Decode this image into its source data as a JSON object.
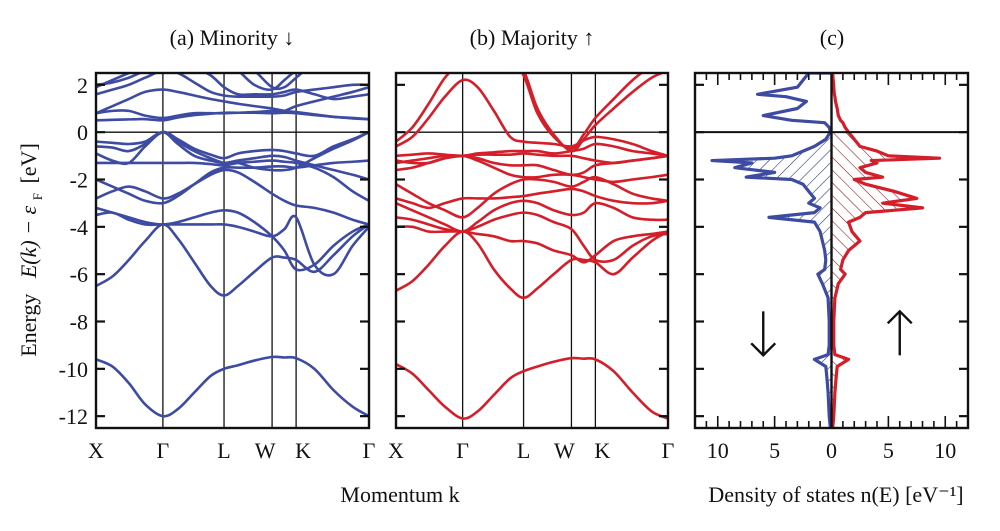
{
  "colors": {
    "minority": "#3d4ba3",
    "majority": "#d41f2a",
    "axis": "#111111"
  },
  "chart_data": [
    {
      "id": "a",
      "type": "line",
      "title": "(a) Minority ↓",
      "xlabel": "",
      "ylabel": "Energy  E(k) − εF [eV]",
      "ylim": [
        -12.5,
        2.5
      ],
      "yticks": [
        2,
        0,
        -2,
        -4,
        -6,
        -8,
        -10,
        -12
      ],
      "ytick_labels": [
        "2",
        "0",
        "-2",
        "-4",
        "-6",
        "-8",
        "-10",
        "-12"
      ],
      "kpoints": [
        {
          "label": "X",
          "pos": 0.0
        },
        {
          "label": "Γ",
          "pos": 0.245
        },
        {
          "label": "L",
          "pos": 0.469
        },
        {
          "label": "W",
          "pos": 0.645
        },
        {
          "label": "K",
          "pos": 0.733
        },
        {
          "label": "Γ",
          "pos": 1.0
        }
      ],
      "fermi_level": 0,
      "series_color": "minority",
      "k_samples": [
        0,
        0.06,
        0.12,
        0.18,
        0.245,
        0.3,
        0.36,
        0.42,
        0.469,
        0.52,
        0.58,
        0.645,
        0.69,
        0.733,
        0.8,
        0.87,
        0.94,
        1.0
      ],
      "bands": [
        [
          -9.6,
          -9.9,
          -10.6,
          -11.5,
          -12.0,
          -11.7,
          -11.0,
          -10.3,
          -10.0,
          -9.85,
          -9.65,
          -9.5,
          -9.52,
          -9.55,
          -10.0,
          -10.9,
          -11.6,
          -12.0
        ],
        [
          -6.5,
          -6.1,
          -5.4,
          -4.6,
          -3.9,
          -4.5,
          -5.5,
          -6.5,
          -6.9,
          -6.5,
          -5.9,
          -5.3,
          -5.3,
          -5.4,
          -5.9,
          -5.2,
          -4.4,
          -3.9
        ],
        [
          -3.5,
          -3.4,
          -3.7,
          -3.9,
          -3.9,
          -3.9,
          -3.9,
          -3.9,
          -3.9,
          -4.0,
          -4.2,
          -4.4,
          -4.1,
          -3.6,
          -5.6,
          -6.0,
          -4.8,
          -4.0
        ],
        [
          -3.2,
          -3.4,
          -3.6,
          -3.8,
          -3.9,
          -3.8,
          -3.6,
          -3.4,
          -3.3,
          -3.4,
          -3.8,
          -4.4,
          -5.0,
          -5.8,
          -5.6,
          -4.8,
          -4.2,
          -3.9
        ],
        [
          -2.8,
          -2.5,
          -2.3,
          -2.5,
          -2.8,
          -2.6,
          -2.2,
          -1.8,
          -1.6,
          -1.7,
          -2.1,
          -2.6,
          -2.9,
          -3.1,
          -3.2,
          -3.4,
          -3.7,
          -3.9
        ],
        [
          -2.0,
          -2.3,
          -2.6,
          -2.9,
          -3.0,
          -2.7,
          -2.2,
          -1.7,
          -1.5,
          -1.5,
          -1.5,
          -1.45,
          -1.45,
          -1.5,
          -1.4,
          -1.3,
          -1.25,
          -1.2
        ],
        [
          -1.3,
          -1.3,
          -1.3,
          -1.3,
          -1.3,
          -1.3,
          -1.3,
          -1.35,
          -1.4,
          -1.3,
          -1.25,
          -1.2,
          -1.25,
          -1.3,
          -1.5,
          -1.9,
          -2.5,
          -2.9
        ],
        [
          -0.4,
          -0.45,
          -0.5,
          -0.4,
          0.0,
          -0.5,
          -1.0,
          -1.2,
          -1.3,
          -1.2,
          -1.1,
          -1.0,
          -1.05,
          -1.2,
          -1.4,
          -1.6,
          -1.8,
          -2.0
        ],
        [
          -0.6,
          -0.65,
          -0.8,
          -0.5,
          0.0,
          -0.3,
          -0.7,
          -0.95,
          -1.1,
          -0.9,
          -0.8,
          -0.75,
          -0.8,
          -0.9,
          -1.0,
          -0.6,
          -0.3,
          0.0
        ],
        [
          -0.9,
          -1.2,
          -1.3,
          -0.6,
          0.0,
          -0.4,
          -0.8,
          -1.1,
          -1.3,
          -1.3,
          -1.5,
          -1.6,
          -1.6,
          -1.5,
          -1.1,
          -0.7,
          -0.35,
          0.0
        ],
        [
          0.5,
          0.52,
          0.54,
          0.55,
          0.5,
          0.62,
          0.72,
          0.78,
          0.82,
          0.82,
          0.82,
          0.8,
          0.82,
          0.8,
          0.72,
          0.65,
          0.58,
          0.55
        ],
        [
          0.8,
          0.9,
          0.9,
          0.7,
          0.6,
          0.7,
          0.8,
          0.8,
          0.8,
          0.82,
          0.85,
          0.9,
          0.9,
          1.1,
          1.3,
          1.5,
          1.7,
          1.9
        ],
        [
          0.8,
          1.1,
          1.4,
          1.7,
          1.8,
          1.7,
          1.55,
          1.4,
          1.3,
          1.2,
          1.1,
          1.0,
          0.9,
          0.85,
          0.75,
          0.65,
          0.6,
          0.55
        ],
        [
          1.6,
          1.8,
          2.0,
          2.3,
          2.6,
          2.5,
          2.1,
          1.7,
          1.55,
          1.5,
          1.5,
          1.5,
          1.55,
          1.7,
          1.8,
          1.9,
          2.0,
          2.0
        ],
        [
          1.9,
          2.2,
          2.5,
          2.8,
          3.0,
          2.9,
          2.7,
          2.4,
          1.9,
          1.6,
          1.6,
          1.6,
          1.7,
          1.8,
          1.6,
          1.4,
          1.5,
          1.6
        ],
        [
          2.0,
          2.1,
          2.3,
          2.6,
          2.9,
          3.0,
          3.0,
          3.0,
          2.9,
          2.6,
          2.0,
          1.8,
          2.2,
          2.6,
          3.0,
          3.0,
          3.0,
          3.0
        ],
        [
          3.0,
          3.0,
          3.0,
          3.0,
          3.0,
          3.0,
          3.0,
          3.0,
          3.0,
          3.0,
          2.6,
          1.9,
          1.9,
          2.3,
          2.9,
          3.0,
          3.0,
          3.0
        ]
      ]
    },
    {
      "id": "b",
      "type": "line",
      "title": "(b) Majority ↑",
      "xlabel": "Momentum  k",
      "ylabel": "",
      "ylim": [
        -12.5,
        2.5
      ],
      "yticks": [
        2,
        0,
        -2,
        -4,
        -6,
        -8,
        -10,
        -12
      ],
      "kpoints": [
        {
          "label": "X",
          "pos": 0.0
        },
        {
          "label": "Γ",
          "pos": 0.245
        },
        {
          "label": "L",
          "pos": 0.469
        },
        {
          "label": "W",
          "pos": 0.645
        },
        {
          "label": "K",
          "pos": 0.733
        },
        {
          "label": "Γ",
          "pos": 1.0
        }
      ],
      "fermi_level": 0,
      "series_color": "majority",
      "k_samples": [
        0,
        0.06,
        0.12,
        0.18,
        0.245,
        0.3,
        0.36,
        0.42,
        0.469,
        0.52,
        0.58,
        0.645,
        0.69,
        0.733,
        0.8,
        0.87,
        0.94,
        1.0
      ],
      "bands": [
        [
          -9.8,
          -10.2,
          -10.9,
          -11.6,
          -12.1,
          -11.8,
          -11.1,
          -10.4,
          -10.1,
          -9.9,
          -9.7,
          -9.55,
          -9.57,
          -9.6,
          -10.1,
          -11.0,
          -11.8,
          -12.1
        ],
        [
          -6.7,
          -6.3,
          -5.6,
          -4.8,
          -4.2,
          -4.7,
          -5.8,
          -6.6,
          -7.0,
          -6.6,
          -6.0,
          -5.4,
          -5.4,
          -5.5,
          -6.0,
          -5.3,
          -4.6,
          -4.2
        ],
        [
          -4.0,
          -4.0,
          -4.2,
          -4.2,
          -4.2,
          -4.3,
          -4.4,
          -4.6,
          -4.6,
          -4.7,
          -5.0,
          -5.2,
          -5.5,
          -5.2,
          -4.6,
          -4.4,
          -4.3,
          -4.2
        ],
        [
          -3.6,
          -3.7,
          -3.9,
          -4.1,
          -4.2,
          -4.0,
          -3.7,
          -3.5,
          -3.4,
          -3.5,
          -3.8,
          -4.1,
          -4.8,
          -5.4,
          -5.4,
          -4.8,
          -4.4,
          -4.3
        ],
        [
          -3.0,
          -3.3,
          -3.6,
          -3.9,
          -4.2,
          -3.8,
          -3.3,
          -3.0,
          -2.9,
          -3.0,
          -3.3,
          -3.5,
          -3.4,
          -3.0,
          -3.2,
          -3.6,
          -3.7,
          -3.7
        ],
        [
          -2.8,
          -3.0,
          -3.2,
          -3.0,
          -2.8,
          -2.8,
          -2.8,
          -2.75,
          -2.7,
          -2.6,
          -2.5,
          -2.4,
          -2.5,
          -2.7,
          -2.9,
          -3.0,
          -3.0,
          -2.9
        ],
        [
          -2.2,
          -2.6,
          -3.0,
          -3.3,
          -3.6,
          -3.2,
          -2.6,
          -2.2,
          -2.0,
          -2.0,
          -2.1,
          -2.3,
          -2.1,
          -1.9,
          -2.2,
          -2.6,
          -2.8,
          -2.9
        ],
        [
          -1.6,
          -1.5,
          -1.3,
          -1.1,
          -1.0,
          -1.2,
          -1.5,
          -1.8,
          -1.9,
          -1.9,
          -1.8,
          -1.8,
          -1.9,
          -2.0,
          -2.1,
          -2.0,
          -1.9,
          -1.8
        ],
        [
          -1.3,
          -1.2,
          -1.1,
          -1.0,
          -1.0,
          -1.1,
          -1.3,
          -1.4,
          -1.4,
          -1.4,
          -1.6,
          -1.8,
          -1.7,
          -1.4,
          -1.3,
          -1.2,
          -1.1,
          -1.0
        ],
        [
          -1.2,
          -1.3,
          -1.3,
          -1.1,
          -1.0,
          -0.95,
          -0.95,
          -0.95,
          -0.9,
          -0.95,
          -1.0,
          -1.0,
          -1.1,
          -1.2,
          -1.3,
          -1.2,
          -1.1,
          -1.0
        ],
        [
          -1.0,
          -0.95,
          -0.9,
          -0.95,
          -1.0,
          -0.9,
          -0.85,
          -0.8,
          -0.8,
          -0.8,
          -0.9,
          -0.8,
          -0.7,
          -0.5,
          -0.6,
          -0.8,
          -0.9,
          -1.0
        ],
        [
          -0.6,
          -0.2,
          0.6,
          1.5,
          2.2,
          1.9,
          0.9,
          -0.2,
          -0.4,
          -0.45,
          -0.5,
          -0.6,
          -0.35,
          -0.2,
          -0.3,
          -0.5,
          -0.8,
          -1.0
        ],
        [
          -0.4,
          0.2,
          1.2,
          2.3,
          3.0,
          3.0,
          3.0,
          3.0,
          2.6,
          1.0,
          -0.1,
          -0.8,
          -0.3,
          0.3,
          1.0,
          1.7,
          2.3,
          2.6
        ],
        [
          3.0,
          3.0,
          3.0,
          3.0,
          3.0,
          3.0,
          3.0,
          3.0,
          2.4,
          0.8,
          -0.2,
          -0.7,
          -0.1,
          0.6,
          1.4,
          2.2,
          2.8,
          3.0
        ]
      ]
    },
    {
      "id": "c",
      "type": "area",
      "title": "(c)",
      "xlabel": "Density of states  n(E) [eV⁻¹]",
      "ylabel": "",
      "xlim": [
        -12,
        12
      ],
      "ylim": [
        -12.5,
        2.5
      ],
      "xticks": [
        -10,
        -5,
        0,
        5,
        10
      ],
      "xtick_labels": [
        "10",
        "5",
        "0",
        "5",
        "10"
      ],
      "fermi_level": 0,
      "annotations": [
        {
          "text": "↓",
          "meaning": "minority spin",
          "x": -6,
          "y": -8.5
        },
        {
          "text": "↑",
          "meaning": "majority spin",
          "x": 6,
          "y": -8.5
        }
      ],
      "energy": [
        2.5,
        2.2,
        1.9,
        1.6,
        1.5,
        1.3,
        1.0,
        0.7,
        0.5,
        0.4,
        0.2,
        0.0,
        -0.3,
        -0.6,
        -0.8,
        -1.0,
        -1.1,
        -1.2,
        -1.3,
        -1.5,
        -1.7,
        -1.9,
        -2.0,
        -2.2,
        -2.5,
        -2.8,
        -3.0,
        -3.2,
        -3.4,
        -3.6,
        -3.8,
        -4.2,
        -4.6,
        -5.0,
        -5.4,
        -5.8,
        -6.0,
        -6.4,
        -7.0,
        -8.0,
        -9.0,
        -9.4,
        -9.6,
        -9.9,
        -10.4,
        -11.0,
        -12.0,
        -12.5
      ],
      "series": [
        {
          "name": "minority",
          "sign": -1,
          "values": [
            2.0,
            2.5,
            3.0,
            6.5,
            4.0,
            2.2,
            3.0,
            6.0,
            3.5,
            0.6,
            0.2,
            0.1,
            0.5,
            1.5,
            2.5,
            3.5,
            5.0,
            10.5,
            7.0,
            8.5,
            5.0,
            7.5,
            3.5,
            2.5,
            2.0,
            1.5,
            2.0,
            1.0,
            1.5,
            5.5,
            1.5,
            1.0,
            0.8,
            0.6,
            0.5,
            0.6,
            1.2,
            0.8,
            0.3,
            0.2,
            0.2,
            0.3,
            1.5,
            0.5,
            0.4,
            0.3,
            0.2,
            0.1
          ]
        },
        {
          "name": "majority",
          "sign": 1,
          "values": [
            0.1,
            0.15,
            0.2,
            0.25,
            0.3,
            0.35,
            0.5,
            0.6,
            0.8,
            1.0,
            1.2,
            1.5,
            2.0,
            2.5,
            4.0,
            5.0,
            9.5,
            3.5,
            4.0,
            2.5,
            3.0,
            4.5,
            2.0,
            3.0,
            5.5,
            7.5,
            4.5,
            8.0,
            3.0,
            2.5,
            1.5,
            1.8,
            2.5,
            1.5,
            1.0,
            0.8,
            1.2,
            0.6,
            0.3,
            0.2,
            0.2,
            0.3,
            1.5,
            0.5,
            0.4,
            0.3,
            0.2,
            0.1
          ]
        }
      ]
    }
  ],
  "shared_axis": {
    "ylabel_energy": "Energy",
    "ylabel_formula": "E(k) − ε",
    "ylabel_sub": "F",
    "ylabel_unit": "[eV]"
  }
}
